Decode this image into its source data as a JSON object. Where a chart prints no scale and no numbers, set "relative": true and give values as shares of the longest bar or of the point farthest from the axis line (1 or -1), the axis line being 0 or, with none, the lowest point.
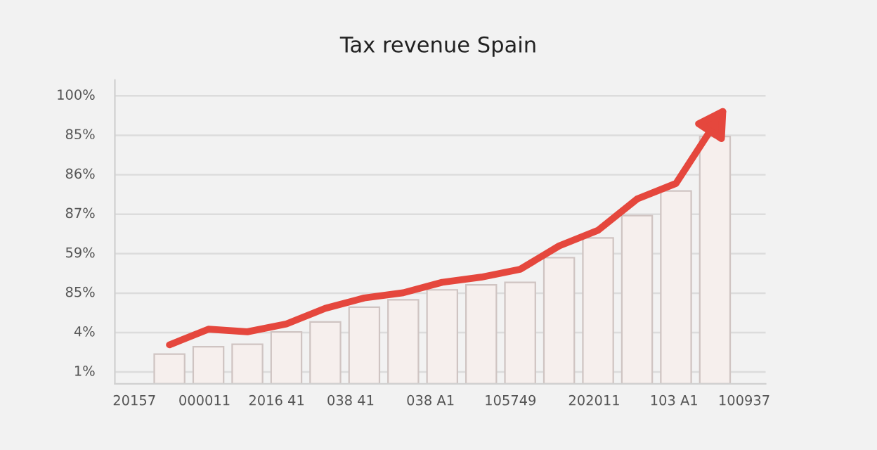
{
  "chart_data": [
    {
      "type": "bar",
      "title": "Tax revenue Spain",
      "relative": true,
      "categories": [
        null,
        null,
        null,
        null,
        null,
        null,
        null,
        null,
        null,
        null,
        null,
        null,
        null,
        null,
        null
      ],
      "series": [
        {
          "color": "#f6efed",
          "values": [
            0.12,
            0.15,
            0.16,
            0.21,
            0.25,
            0.31,
            0.34,
            0.38,
            0.4,
            0.41,
            0.51,
            0.59,
            0.68,
            0.78,
            1.0
          ]
        }
      ],
      "annotations": [
        "1%",
        "4%",
        "85%",
        "59%",
        "87%",
        "86%",
        "85%",
        "100%",
        "20157",
        "000011",
        "2016 41",
        "038 41",
        "038 A1",
        "105749",
        "202011",
        "103 A1",
        "100937"
      ],
      "grid": "y"
    },
    {
      "type": "line",
      "relative": true,
      "categories": [
        null,
        null,
        null,
        null,
        null,
        null,
        null,
        null,
        null,
        null,
        null,
        null,
        null,
        null,
        null
      ],
      "series": [
        {
          "color": "#e5473d",
          "values": [
            0.15,
            0.21,
            0.2,
            0.23,
            0.29,
            0.33,
            0.35,
            0.39,
            0.41,
            0.44,
            0.53,
            0.59,
            0.71,
            0.77,
            1.0
          ]
        }
      ],
      "marker": "none",
      "line_style": "solid"
    }
  ]
}
